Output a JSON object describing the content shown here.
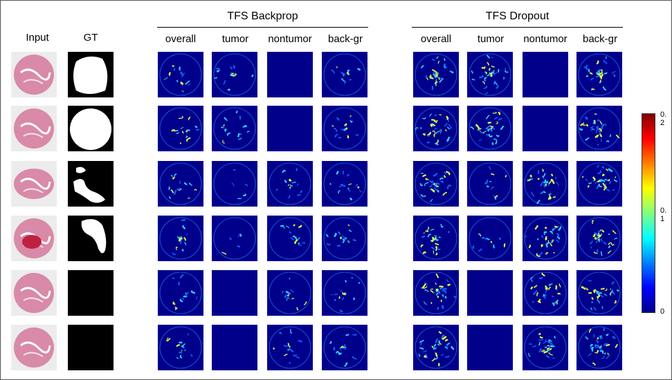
{
  "columns_left": [
    "Input",
    "GT"
  ],
  "groups": [
    {
      "title": "TFS Backprop",
      "columns": [
        "overall",
        "tumor",
        "nontumor",
        "back-gr"
      ]
    },
    {
      "title": "TFS Dropout",
      "columns": [
        "overall",
        "tumor",
        "nontumor",
        "back-gr"
      ]
    }
  ],
  "colorbar": {
    "labels": [
      "0.2",
      "0.1",
      "0"
    ]
  }
}
